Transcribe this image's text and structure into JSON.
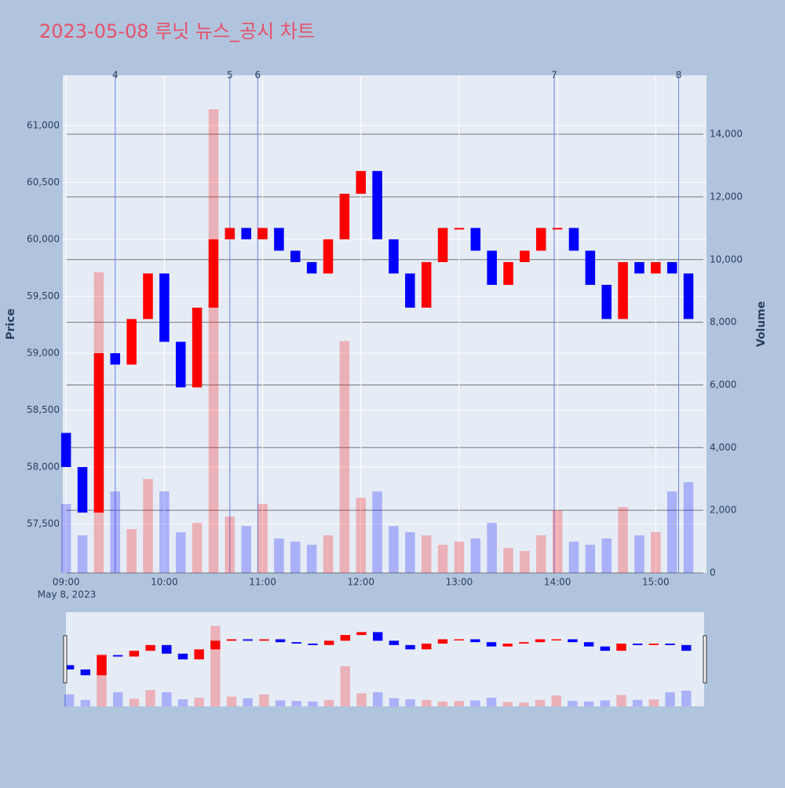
{
  "chart_data": {
    "type": "candlestick",
    "title": "2023-05-08 루닛 뉴스_공시 차트",
    "x": [
      0,
      10,
      20,
      30,
      40,
      50,
      60,
      70,
      80,
      90,
      100,
      110,
      120,
      130,
      140,
      150,
      160,
      170,
      180,
      190,
      200,
      210,
      220,
      230,
      240,
      250,
      260,
      270,
      280,
      290,
      300,
      310,
      320,
      330,
      340,
      350,
      360,
      370,
      380
    ],
    "open": [
      58300,
      58000,
      57600,
      59000,
      58900,
      59300,
      59700,
      59100,
      58700,
      59400,
      60000,
      60100,
      60000,
      60100,
      59900,
      59800,
      59700,
      60000,
      60400,
      60600,
      60000,
      59700,
      59400,
      59800,
      60100,
      60100,
      59900,
      59600,
      59800,
      59900,
      60100,
      60100,
      59900,
      59600,
      59300,
      59800,
      59700,
      59800,
      59700
    ],
    "close": [
      58000,
      57600,
      59000,
      58900,
      59300,
      59700,
      59100,
      58700,
      59400,
      60000,
      60100,
      60000,
      60100,
      59900,
      59800,
      59700,
      60000,
      60400,
      60600,
      60000,
      59700,
      59400,
      59800,
      60100,
      60100,
      59900,
      59600,
      59800,
      59900,
      60100,
      60100,
      59900,
      59600,
      59300,
      59800,
      59700,
      59800,
      59700,
      59300
    ],
    "volume": [
      2200,
      1200,
      9600,
      2600,
      1400,
      3000,
      2600,
      1300,
      1600,
      14800,
      1800,
      1500,
      2200,
      1100,
      1000,
      900,
      1200,
      7400,
      2400,
      2600,
      1500,
      1300,
      1200,
      900,
      1000,
      1100,
      1600,
      800,
      700,
      1200,
      2000,
      1000,
      900,
      1100,
      2100,
      1200,
      1300,
      2600,
      2900
    ],
    "xlim": [
      -2,
      391
    ],
    "xticks": [
      {
        "value": 0,
        "label": "09:00"
      },
      {
        "value": 60,
        "label": "10:00"
      },
      {
        "value": 120,
        "label": "11:00"
      },
      {
        "value": 180,
        "label": "12:00"
      },
      {
        "value": 240,
        "label": "13:00"
      },
      {
        "value": 300,
        "label": "14:00"
      },
      {
        "value": 360,
        "label": "15:00"
      }
    ],
    "x_sublabel": "May 8, 2023",
    "ylim": [
      57070,
      61440
    ],
    "yticks": [
      {
        "value": 57500,
        "label": "57,500"
      },
      {
        "value": 58000,
        "label": "58,000"
      },
      {
        "value": 58500,
        "label": "58,500"
      },
      {
        "value": 59000,
        "label": "59,000"
      },
      {
        "value": 59500,
        "label": "59,500"
      },
      {
        "value": 60000,
        "label": "60,000"
      },
      {
        "value": 60500,
        "label": "60,500"
      },
      {
        "value": 61000,
        "label": "61,000"
      }
    ],
    "y_title": "Price",
    "y2lim": [
      0,
      15880
    ],
    "y2ticks": [
      0,
      {
        "value": 2000,
        "label": "2,000"
      },
      {
        "value": 4000,
        "label": "4,000"
      },
      {
        "value": 6000,
        "label": "6,000"
      },
      {
        "value": 8000,
        "label": "8,000"
      },
      {
        "value": 10000,
        "label": "10,000"
      },
      {
        "value": 12000,
        "label": "12,000"
      },
      {
        "value": 14000,
        "label": "14,000"
      }
    ],
    "y2_title": "Volume",
    "increasing_color": "#ff0000",
    "decreasing_color": "#0000ff",
    "grid": true,
    "events": [
      {
        "x": 30,
        "label": "4"
      },
      {
        "x": 100,
        "label": "5"
      },
      {
        "x": 117,
        "label": "6"
      },
      {
        "x": 298,
        "label": "7"
      },
      {
        "x": 374,
        "label": "8"
      }
    ]
  }
}
